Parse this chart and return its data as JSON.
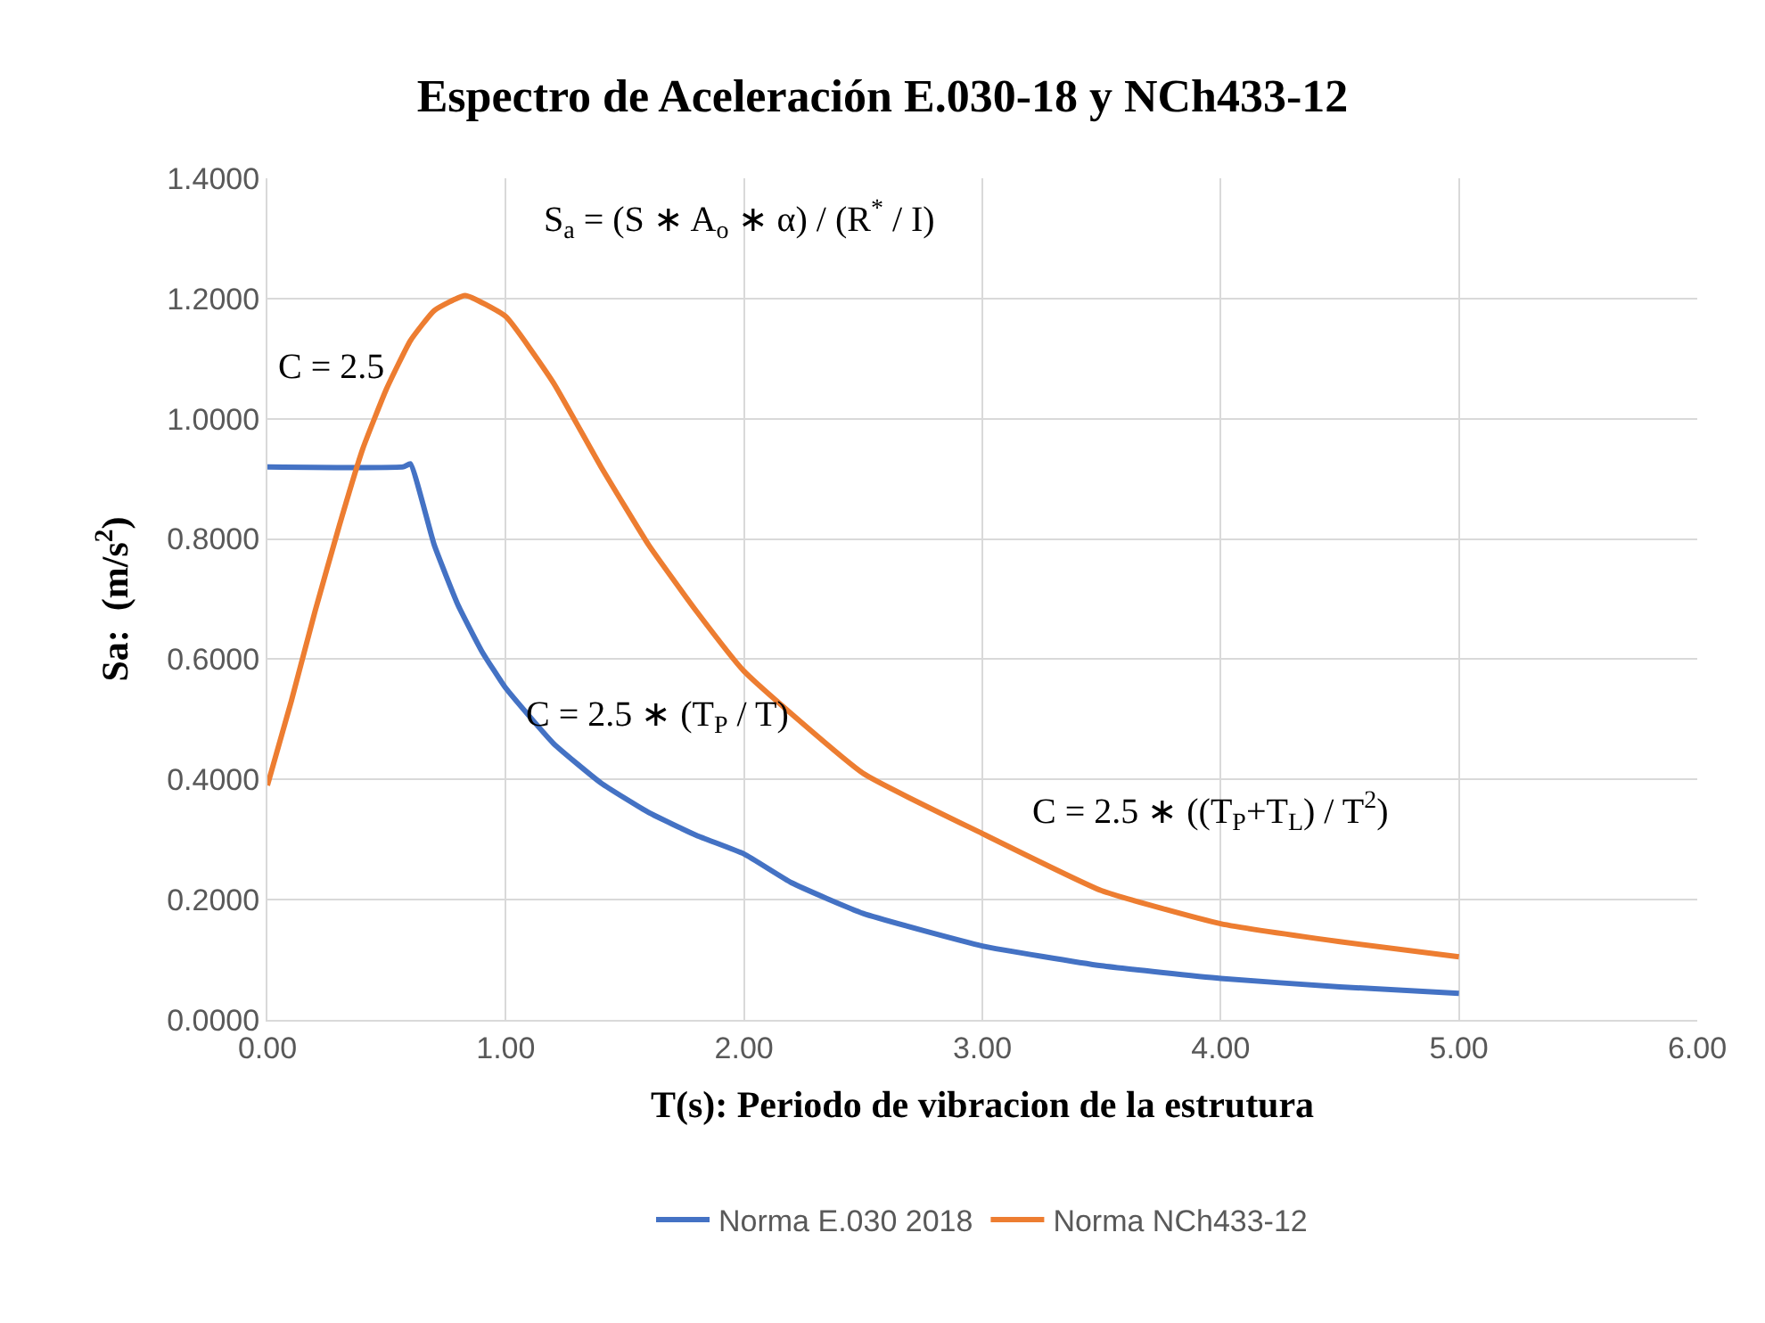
{
  "chart_data": {
    "type": "line",
    "title": "Espectro de Aceleración E.030-18 y NCh433-12",
    "xlabel": "T(s): Periodo de vibracion de la estrutura",
    "ylabel": "Sa:  (m/s$^{2}$)",
    "xlim": [
      0,
      6
    ],
    "xticks": [
      {
        "value": 0,
        "label": "0.00"
      },
      {
        "value": 1,
        "label": "1.00"
      },
      {
        "value": 2,
        "label": "2.00"
      },
      {
        "value": 3,
        "label": "3.00"
      },
      {
        "value": 4,
        "label": "4.00"
      },
      {
        "value": 5,
        "label": "5.00"
      },
      {
        "value": 6,
        "label": "6.00"
      }
    ],
    "ylim": [
      0,
      1.4
    ],
    "yticks": [
      {
        "value": 0,
        "label": "0.0000"
      },
      {
        "value": 0.2,
        "label": "0.2000"
      },
      {
        "value": 0.4,
        "label": "0.4000"
      },
      {
        "value": 0.6,
        "label": "0.6000"
      },
      {
        "value": 0.8,
        "label": "0.8000"
      },
      {
        "value": 1.0,
        "label": "1.0000"
      },
      {
        "value": 1.2,
        "label": "1.2000"
      },
      {
        "value": 1.4,
        "label": "1.4000"
      }
    ],
    "grid": true,
    "legend": "bottom",
    "line_style": "solid",
    "marker": "none",
    "series": [
      {
        "name": "Norma E.030 2018",
        "color": "#4472c4",
        "x": [
          0,
          0.57,
          0.6,
          0.7,
          0.8,
          0.9,
          1.0,
          1.2,
          1.4,
          1.6,
          1.8,
          2.0,
          2.2,
          2.5,
          3.0,
          3.5,
          4.0,
          4.5,
          5.0
        ],
        "values": [
          0.92,
          0.92,
          0.925,
          0.79,
          0.69,
          0.613,
          0.552,
          0.46,
          0.394,
          0.345,
          0.307,
          0.276,
          0.228,
          0.177,
          0.123,
          0.09,
          0.069,
          0.055,
          0.044
        ]
      },
      {
        "name": "Norma NCh433-12",
        "color": "#ed7d31",
        "x": [
          0,
          0.1,
          0.2,
          0.3,
          0.4,
          0.5,
          0.6,
          0.7,
          0.83,
          1.0,
          1.2,
          1.4,
          1.6,
          1.8,
          2.0,
          2.5,
          3.0,
          3.5,
          4.0,
          4.5,
          5.0
        ],
        "values": [
          0.39,
          0.53,
          0.68,
          0.82,
          0.95,
          1.05,
          1.13,
          1.18,
          1.205,
          1.17,
          1.06,
          0.92,
          0.79,
          0.68,
          0.58,
          0.41,
          0.31,
          0.215,
          0.16,
          0.13,
          0.105
        ]
      }
    ],
    "annotations": [
      "S$_{a}$ = (S ∗ A$_{o}$ ∗ α) / (R$^{*}$ / I)",
      "C = 2.5",
      "C = 2.5 ∗ (T$_{P}$ / T)",
      "C = 2.5 ∗ ((T$_{P}$+T$_{L}$) / T$^{2}$)"
    ]
  }
}
